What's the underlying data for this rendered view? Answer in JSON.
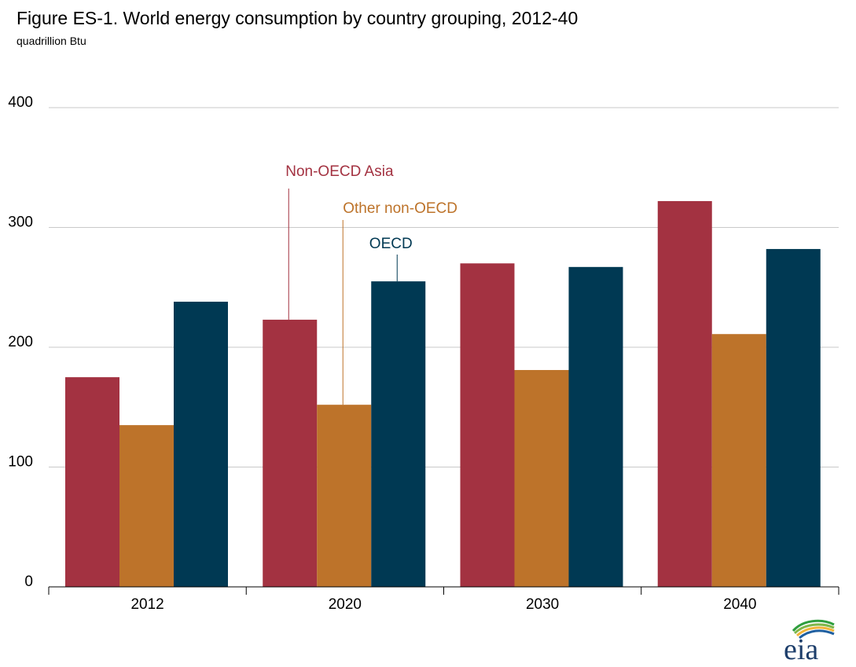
{
  "chart": {
    "title": "Figure ES-1. World energy consumption by country grouping, 2012-40",
    "subtitle": "quadrillion Btu"
  },
  "chart_data": {
    "type": "bar",
    "title": "Figure ES-1. World energy consumption by country grouping, 2012-40",
    "ylabel": "quadrillion Btu",
    "xlabel": "",
    "categories": [
      "2012",
      "2020",
      "2030",
      "2040"
    ],
    "yticks": [
      "0",
      "100",
      "200",
      "300",
      "400"
    ],
    "ylim": [
      0,
      400
    ],
    "grid": true,
    "legend": "annotations inline",
    "series": [
      {
        "name": "Non-OECD Asia",
        "color": "#a33241",
        "values": [
          175,
          223,
          270,
          322
        ]
      },
      {
        "name": "Other non-OECD",
        "color": "#bd732a",
        "values": [
          135,
          152,
          181,
          211
        ]
      },
      {
        "name": "OECD",
        "color": "#003953",
        "values": [
          238,
          255,
          267,
          282
        ]
      }
    ]
  },
  "logo": {
    "text": "eia",
    "icon": "eia-logo-icon"
  }
}
